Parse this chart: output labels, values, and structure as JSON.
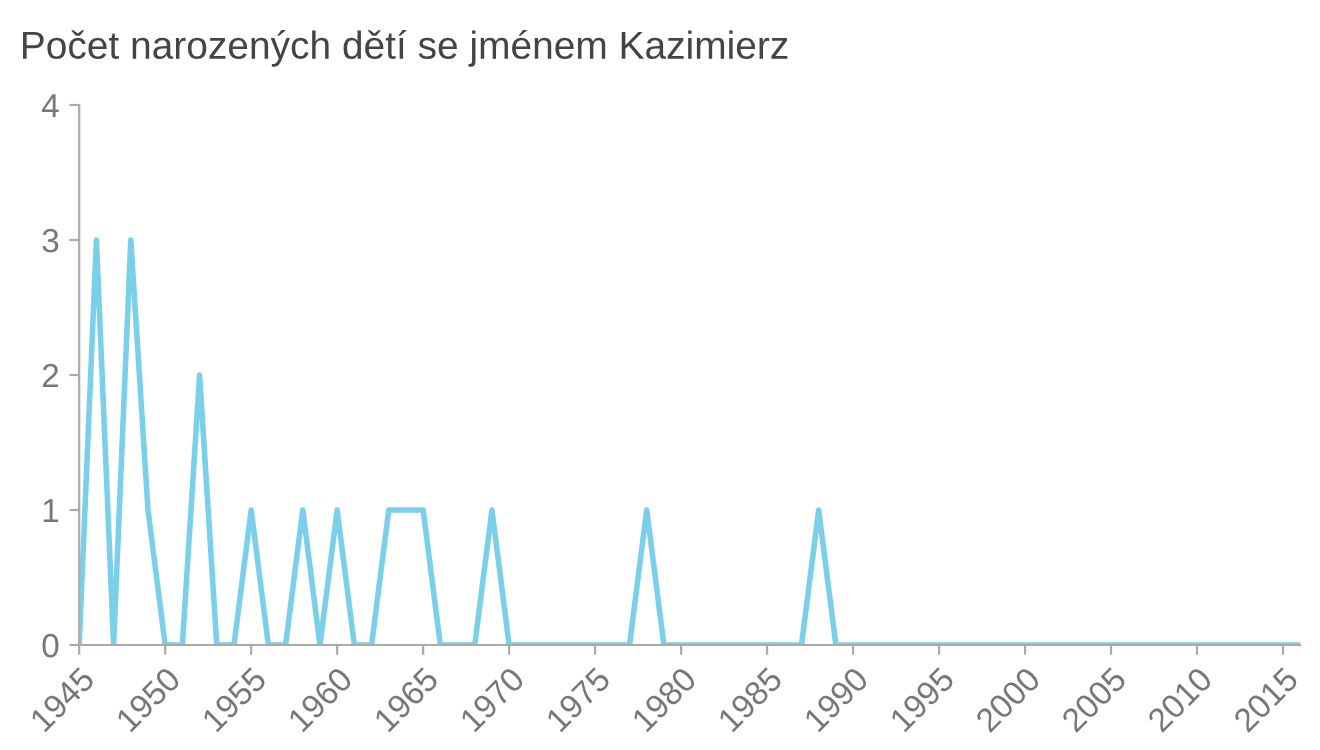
{
  "chart_data": {
    "type": "line",
    "title": "Počet narozených dětí se jménem Kazimierz",
    "x": [
      1945,
      1946,
      1947,
      1948,
      1949,
      1950,
      1951,
      1952,
      1953,
      1954,
      1955,
      1956,
      1957,
      1958,
      1959,
      1960,
      1961,
      1962,
      1963,
      1964,
      1965,
      1966,
      1967,
      1968,
      1969,
      1970,
      1971,
      1972,
      1973,
      1974,
      1975,
      1976,
      1977,
      1978,
      1979,
      1980,
      1981,
      1982,
      1983,
      1984,
      1985,
      1986,
      1987,
      1988,
      1989,
      1990,
      1991,
      1992,
      1993,
      1994,
      1995,
      1996,
      1997,
      1998,
      1999,
      2000,
      2001,
      2002,
      2003,
      2004,
      2005,
      2006,
      2007,
      2008,
      2009,
      2010,
      2011,
      2012,
      2013,
      2014,
      2015,
      2016
    ],
    "series": [
      {
        "color": "#7acfeb",
        "values": [
          0,
          3,
          0,
          3,
          1,
          0,
          0,
          2,
          0,
          0,
          1,
          0,
          0,
          1,
          0,
          1,
          0,
          0,
          1,
          1,
          1,
          0,
          0,
          0,
          1,
          0,
          0,
          0,
          0,
          0,
          0,
          0,
          0,
          1,
          0,
          0,
          0,
          0,
          0,
          0,
          0,
          0,
          0,
          1,
          0,
          0,
          0,
          0,
          0,
          0,
          0,
          0,
          0,
          0,
          0,
          0,
          0,
          0,
          0,
          0,
          0,
          0,
          0,
          0,
          0,
          0,
          0,
          0,
          0,
          0,
          0,
          0
        ]
      }
    ],
    "xlim": [
      1945,
      2016
    ],
    "ylim": [
      0,
      4
    ],
    "xticks": [
      1945,
      1950,
      1955,
      1960,
      1965,
      1970,
      1975,
      1980,
      1985,
      1990,
      1995,
      2000,
      2005,
      2010,
      2015
    ],
    "yticks": [
      0,
      1,
      2,
      3,
      4
    ],
    "grid": false,
    "legend": false,
    "marker": "none",
    "line_style": "solid"
  }
}
